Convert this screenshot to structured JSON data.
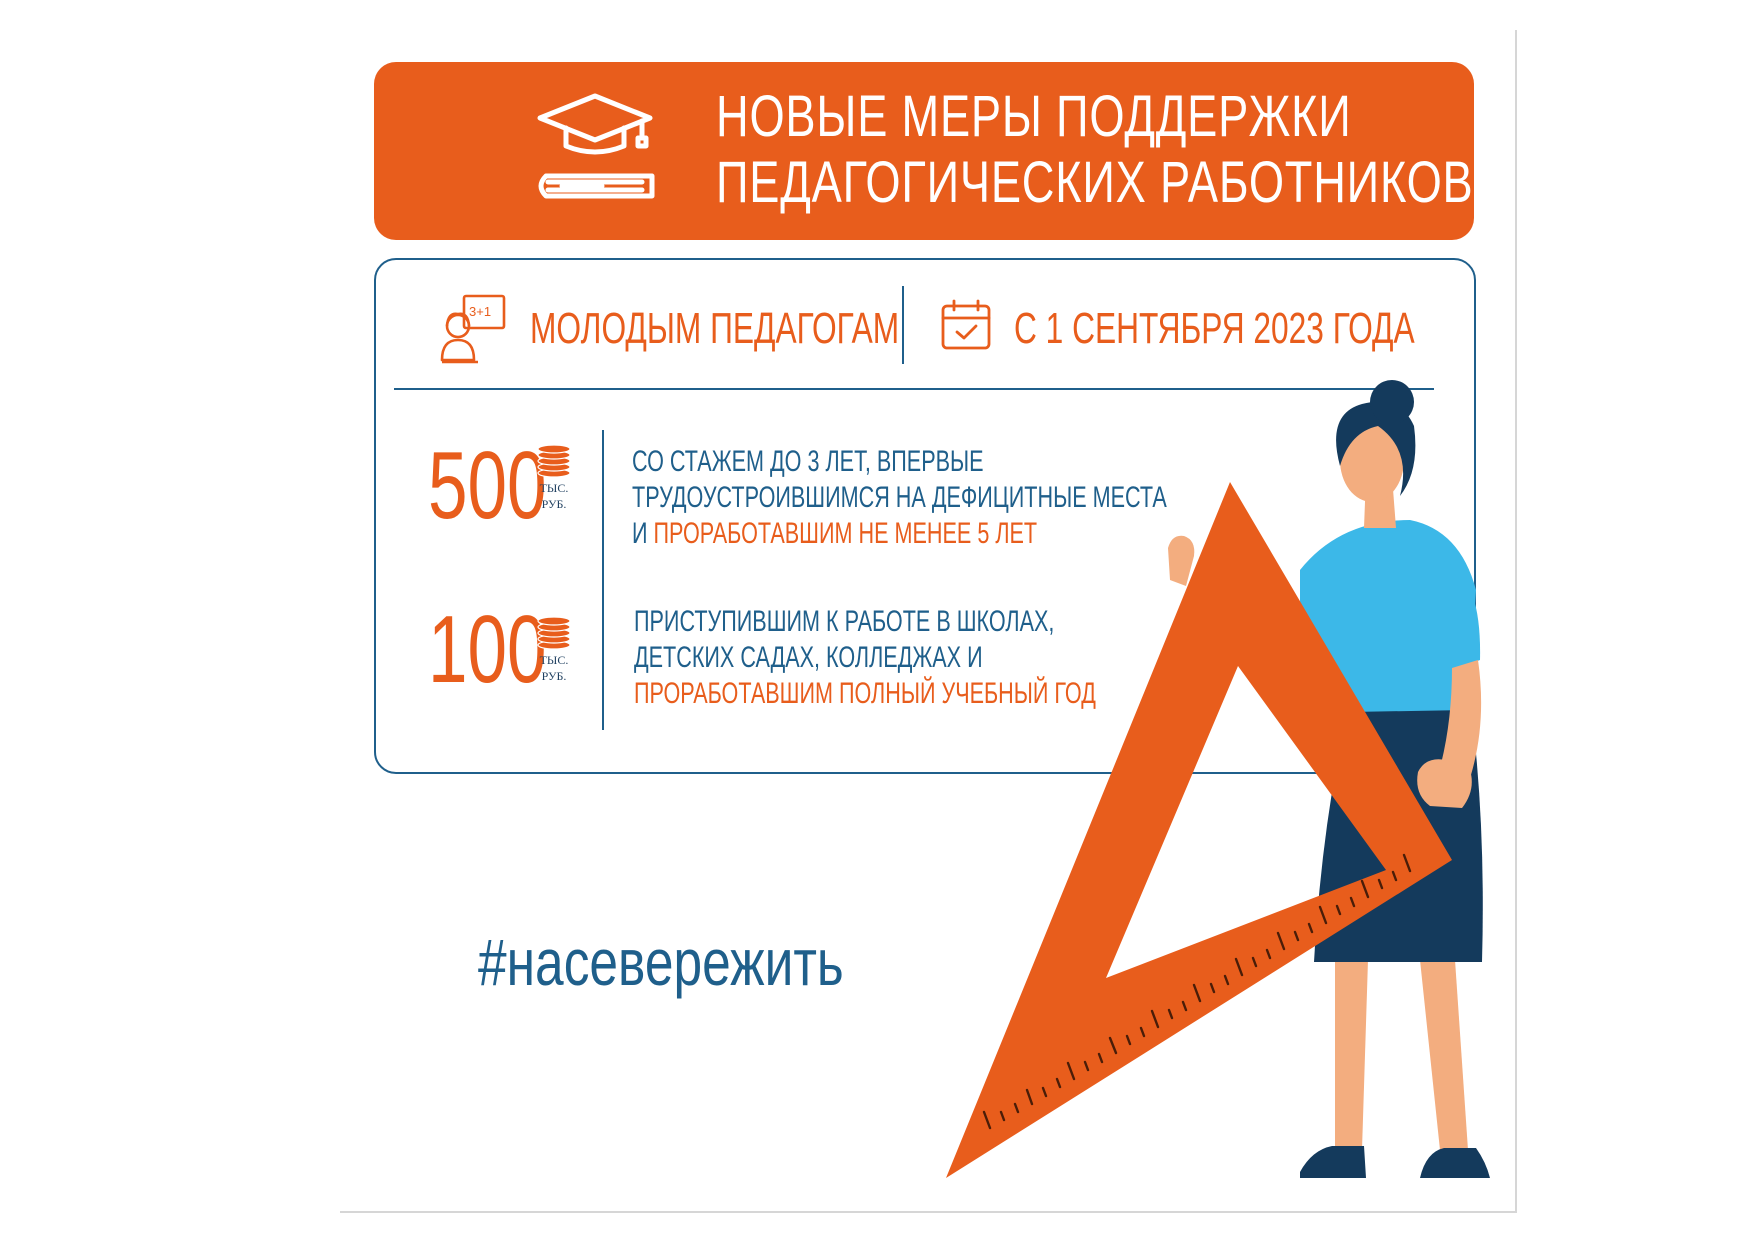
{
  "header": {
    "icon": "graduation-cap-on-books-icon",
    "title_line1": "НОВЫЕ МЕРЫ ПОДДЕРЖКИ",
    "title_line2": "ПЕДАГОГИЧЕСКИХ РАБОТНИКОВ"
  },
  "panel": {
    "audience_icon": "teacher-at-board-icon",
    "audience_label": "МОЛОДЫМ ПЕДАГОГАМ",
    "date_icon": "calendar-check-icon",
    "date_label": "С 1 СЕНТЯБРЯ 2023 ГОДА",
    "payments": [
      {
        "amount": "500",
        "unit_line1": "ТЫС.",
        "unit_line2": "РУБ.",
        "icon": "coins-stack-icon",
        "line1": "СО СТАЖЕМ ДО 3 ЛЕТ, ВПЕРВЫЕ",
        "line2": "ТРУДОУСТРОИВШИМСЯ НА ДЕФИЦИТНЫЕ МЕСТА",
        "line3_prefix": "И ",
        "line3_highlight": "ПРОРАБОТАВШИМ НЕ МЕНЕЕ 5 ЛЕТ"
      },
      {
        "amount": "100",
        "unit_line1": "ТЫС.",
        "unit_line2": "РУБ.",
        "icon": "coins-stack-icon",
        "line1": "ПРИСТУПИВШИМ К РАБОТЕ В ШКОЛАХ,",
        "line2": "ДЕТСКИХ САДАХ, КОЛЛЕДЖАХ И",
        "line3_highlight": "ПРОРАБОТАВШИМ ПОЛНЫЙ УЧЕБНЫЙ ГОД"
      }
    ]
  },
  "hashtag": "#насевережить",
  "colors": {
    "orange": "#e85d1c",
    "blue": "#1f5f8b",
    "navy": "#143a5c",
    "light_blue": "#3cb8e8",
    "skin": "#f3ad7f"
  },
  "illustration": "teacher-holding-triangle-ruler"
}
